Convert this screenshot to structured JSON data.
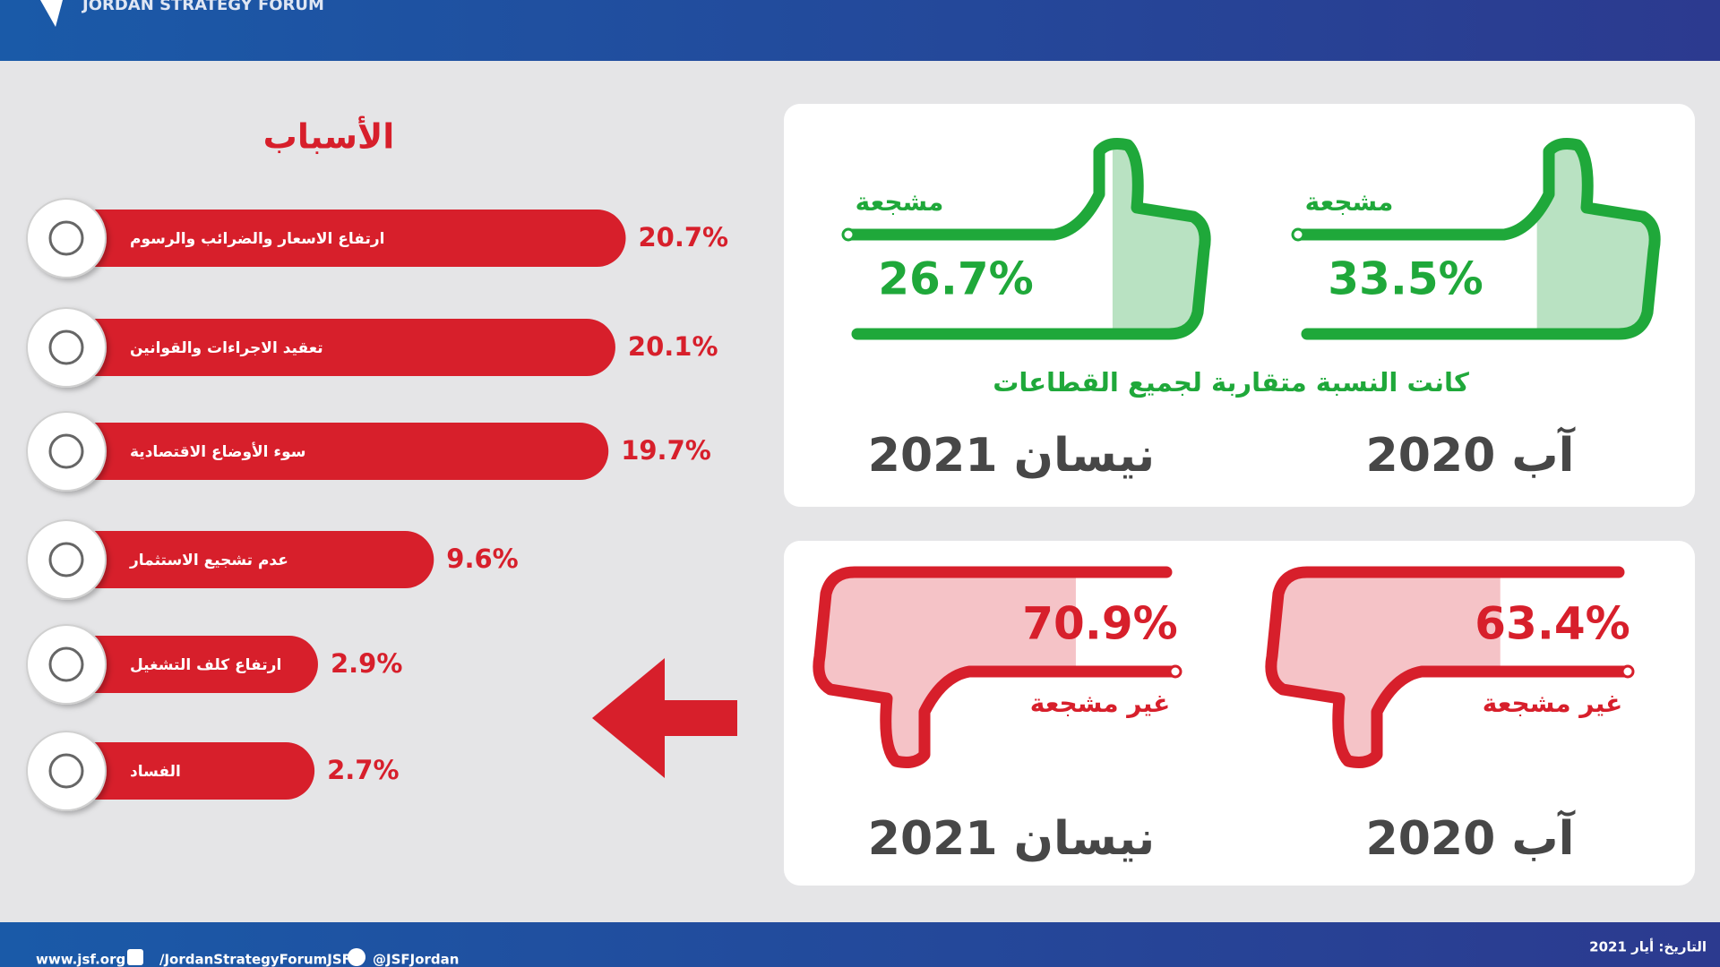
{
  "header": {
    "brand": "JORDAN STRATEGY FORUM"
  },
  "chart_data": {
    "type": "bar",
    "orientation": "horizontal",
    "title": "الأسباب",
    "categories": [
      "ارتفاع الاسعار والضرائب والرسوم",
      "تعقيد الاجراءات والقوانين",
      "سوء الأوضاع الاقتصادية",
      "عدم تشجيع الاستثمار",
      "ارتفاع كلف التشغيل",
      "الفساد"
    ],
    "values": [
      20.7,
      20.1,
      19.7,
      9.6,
      2.9,
      2.7
    ],
    "value_labels": [
      "20.7%",
      "20.1%",
      "19.7%",
      "9.6%",
      "2.9%",
      "2.7%"
    ],
    "color": "#d71f2b"
  },
  "encouraging": {
    "subtitle": "كانت النسبة متقاربة لجميع القطاعات",
    "color": "#1fa83a",
    "items": [
      {
        "period": "آب 2020",
        "label": "مشجعة",
        "value": 33.5,
        "value_label": "33.5%"
      },
      {
        "period": "نيسان 2021",
        "label": "مشجعة",
        "value": 26.7,
        "value_label": "26.7%"
      }
    ]
  },
  "discouraging": {
    "color": "#d71f2b",
    "items": [
      {
        "period": "آب 2020",
        "label": "غير مشجعة",
        "value": 63.4,
        "value_label": "63.4%"
      },
      {
        "period": "نيسان 2021",
        "label": "غير مشجعة",
        "value": 70.9,
        "value_label": "70.9%"
      }
    ]
  },
  "footer": {
    "website": "www.jsf.org",
    "facebook": "/JordanStrategyForumJSF",
    "twitter": "@JSFJordan",
    "date": "التاريخ: أيار 2021"
  }
}
